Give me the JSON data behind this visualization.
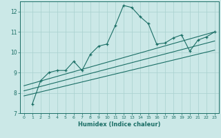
{
  "xlabel": "Humidex (Indice chaleur)",
  "xlim": [
    -0.5,
    23.5
  ],
  "ylim": [
    7,
    12.5
  ],
  "xticks": [
    0,
    1,
    2,
    3,
    4,
    5,
    6,
    7,
    8,
    9,
    10,
    11,
    12,
    13,
    14,
    15,
    16,
    17,
    18,
    19,
    20,
    21,
    22,
    23
  ],
  "yticks": [
    7,
    8,
    9,
    10,
    11,
    12
  ],
  "background_color": "#cbe8e7",
  "line_color": "#1a6e65",
  "grid_color": "#a8d0ce",
  "series1_x": [
    1,
    2,
    3,
    4,
    5,
    6,
    7,
    8,
    9,
    10,
    11,
    12,
    13,
    14,
    15,
    16,
    17,
    18,
    19,
    20,
    21,
    22,
    23
  ],
  "series1_y": [
    7.45,
    8.6,
    9.0,
    9.1,
    9.1,
    9.55,
    9.1,
    9.9,
    10.3,
    10.4,
    11.3,
    12.3,
    12.2,
    11.75,
    11.4,
    10.4,
    10.45,
    10.7,
    10.85,
    10.05,
    10.6,
    10.75,
    11.0
  ],
  "line1_x": [
    0,
    23
  ],
  "line1_y": [
    8.35,
    11.0
  ],
  "line2_x": [
    0,
    23
  ],
  "line2_y": [
    8.1,
    10.55
  ],
  "line3_x": [
    0,
    23
  ],
  "line3_y": [
    7.85,
    10.1
  ]
}
